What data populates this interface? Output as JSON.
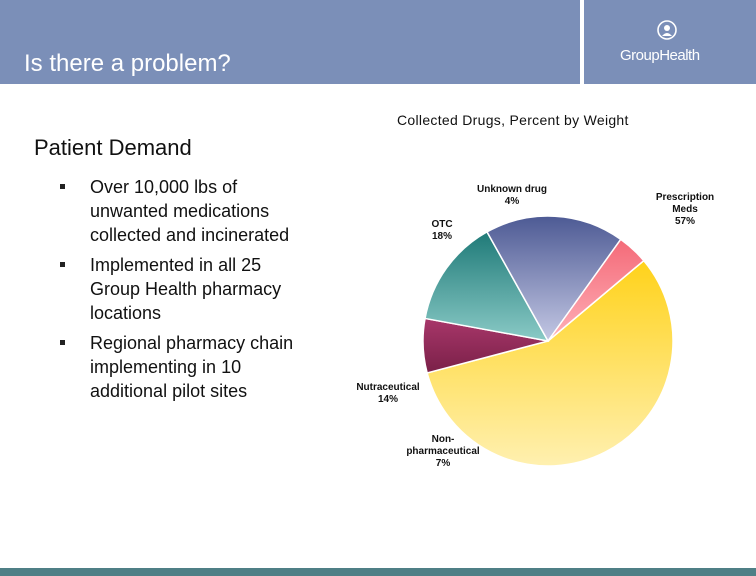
{
  "slide": {
    "title": "Is there a problem?",
    "logo_text": "GroupHealth",
    "heading": "Patient Demand",
    "bullets": [
      "Over 10,000 lbs of unwanted medications collected and incinerated",
      "Implemented in all 25 Group Health pharmacy locations",
      "Regional pharmacy chain implementing in 10 additional pilot sites"
    ]
  },
  "colors": {
    "header": "#7b8fb8",
    "footer": "#4f7f86"
  },
  "chart_data": {
    "type": "pie",
    "title": "Collected Drugs, Percent by Weight",
    "slices": [
      {
        "label": "Prescription Meds",
        "value": 57,
        "value_label": "57%",
        "color_top": "#ffd21a",
        "color_bottom": "#fff0b0"
      },
      {
        "label": "Non-pharmaceutical",
        "value": 7,
        "value_label": "7%",
        "color_top": "#a8376a",
        "color_bottom": "#7a2048"
      },
      {
        "label": "Nutraceutical",
        "value": 14,
        "value_label": "14%",
        "color_top": "#1f7a78",
        "color_bottom": "#8acac6"
      },
      {
        "label": "OTC",
        "value": 18,
        "value_label": "18%",
        "color_top": "#4d5a94",
        "color_bottom": "#c4c8e4"
      },
      {
        "label": "Unknown drug",
        "value": 4,
        "value_label": "4%",
        "color_top": "#f46a78",
        "color_bottom": "#ffb0b8"
      }
    ]
  }
}
